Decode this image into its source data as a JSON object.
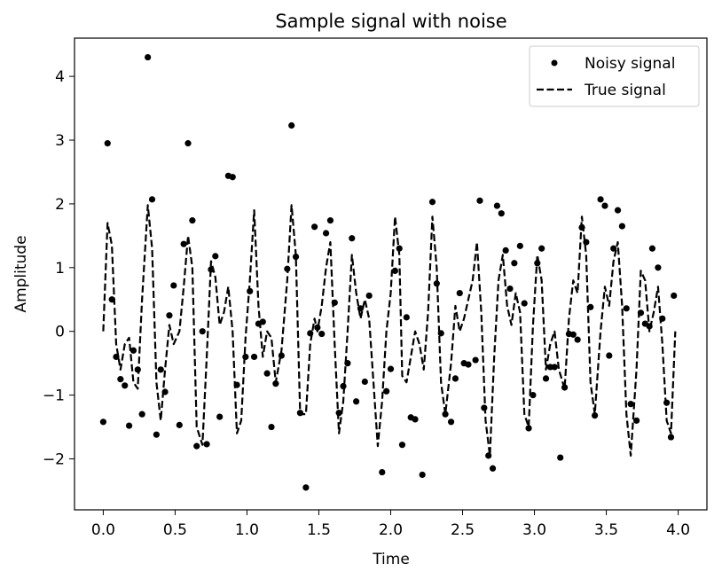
{
  "chart_data": {
    "type": "line",
    "title": "Sample signal with noise",
    "xlabel": "Time",
    "ylabel": "Amplitude",
    "xlim": [
      -0.2,
      4.2
    ],
    "ylim": [
      -2.8,
      4.6
    ],
    "xticks": [
      "0.0",
      "0.5",
      "1.0",
      "1.5",
      "2.0",
      "2.5",
      "3.0",
      "3.5",
      "4.0"
    ],
    "yticks": [
      "−2",
      "−1",
      "0",
      "1",
      "2",
      "3",
      "4"
    ],
    "legend": {
      "position": "upper-right",
      "entries": [
        "Noisy signal",
        "True signal"
      ]
    },
    "series": [
      {
        "name": "Noisy signal",
        "style": "points",
        "color": "#000000",
        "points": [
          [
            0.0,
            -1.42
          ],
          [
            0.03,
            2.95
          ],
          [
            0.06,
            0.5
          ],
          [
            0.09,
            -0.4
          ],
          [
            0.12,
            -0.75
          ],
          [
            0.15,
            -0.85
          ],
          [
            0.18,
            -1.48
          ],
          [
            0.21,
            -0.3
          ],
          [
            0.24,
            -0.6
          ],
          [
            0.27,
            -1.3
          ],
          [
            0.31,
            4.3
          ],
          [
            0.34,
            2.07
          ],
          [
            0.37,
            -1.62
          ],
          [
            0.4,
            -0.6
          ],
          [
            0.43,
            -0.95
          ],
          [
            0.46,
            0.25
          ],
          [
            0.49,
            0.72
          ],
          [
            0.53,
            -1.47
          ],
          [
            0.56,
            1.37
          ],
          [
            0.59,
            2.95
          ],
          [
            0.62,
            1.74
          ],
          [
            0.65,
            -1.8
          ],
          [
            0.69,
            0.0
          ],
          [
            0.72,
            -1.77
          ],
          [
            0.75,
            0.97
          ],
          [
            0.78,
            1.18
          ],
          [
            0.81,
            -1.34
          ],
          [
            0.87,
            2.44
          ],
          [
            0.9,
            2.42
          ],
          [
            0.93,
            -0.84
          ],
          [
            0.99,
            -0.4
          ],
          [
            1.02,
            0.63
          ],
          [
            1.05,
            -0.4
          ],
          [
            1.08,
            0.12
          ],
          [
            1.11,
            0.15
          ],
          [
            1.14,
            -0.66
          ],
          [
            1.17,
            -1.5
          ],
          [
            1.2,
            -0.82
          ],
          [
            1.24,
            -0.38
          ],
          [
            1.28,
            0.98
          ],
          [
            1.31,
            3.23
          ],
          [
            1.34,
            1.17
          ],
          [
            1.37,
            -1.28
          ],
          [
            1.41,
            -2.45
          ],
          [
            1.44,
            -0.03
          ],
          [
            1.47,
            1.64
          ],
          [
            1.49,
            0.06
          ],
          [
            1.52,
            -0.04
          ],
          [
            1.55,
            1.54
          ],
          [
            1.58,
            1.74
          ],
          [
            1.61,
            0.45
          ],
          [
            1.64,
            -1.28
          ],
          [
            1.67,
            -0.86
          ],
          [
            1.7,
            -0.5
          ],
          [
            1.73,
            1.46
          ],
          [
            1.76,
            -1.1
          ],
          [
            1.79,
            0.36
          ],
          [
            1.82,
            -0.79
          ],
          [
            1.85,
            0.56
          ],
          [
            1.94,
            -2.21
          ],
          [
            1.97,
            -0.94
          ],
          [
            2.0,
            -0.59
          ],
          [
            2.03,
            0.95
          ],
          [
            2.06,
            1.3
          ],
          [
            2.08,
            -1.78
          ],
          [
            2.11,
            0.22
          ],
          [
            2.14,
            -1.35
          ],
          [
            2.17,
            -1.38
          ],
          [
            2.22,
            -2.25
          ],
          [
            2.29,
            2.03
          ],
          [
            2.32,
            0.75
          ],
          [
            2.35,
            -0.03
          ],
          [
            2.38,
            -1.3
          ],
          [
            2.42,
            -1.42
          ],
          [
            2.45,
            -0.74
          ],
          [
            2.48,
            0.6
          ],
          [
            2.51,
            -0.5
          ],
          [
            2.54,
            -0.52
          ],
          [
            2.59,
            -0.45
          ],
          [
            2.62,
            2.05
          ],
          [
            2.65,
            -1.2
          ],
          [
            2.68,
            -1.95
          ],
          [
            2.71,
            -2.15
          ],
          [
            2.74,
            1.97
          ],
          [
            2.77,
            1.85
          ],
          [
            2.8,
            1.27
          ],
          [
            2.83,
            0.67
          ],
          [
            2.86,
            1.07
          ],
          [
            2.9,
            1.34
          ],
          [
            2.93,
            0.44
          ],
          [
            2.96,
            -1.52
          ],
          [
            2.99,
            -1.0
          ],
          [
            3.02,
            1.07
          ],
          [
            3.05,
            1.3
          ],
          [
            3.08,
            -0.74
          ],
          [
            3.11,
            -0.56
          ],
          [
            3.14,
            -0.56
          ],
          [
            3.18,
            -1.98
          ],
          [
            3.21,
            -0.88
          ],
          [
            3.24,
            -0.04
          ],
          [
            3.27,
            -0.05
          ],
          [
            3.3,
            -0.13
          ],
          [
            3.33,
            1.63
          ],
          [
            3.36,
            1.4
          ],
          [
            3.39,
            0.38
          ],
          [
            3.42,
            -1.32
          ],
          [
            3.46,
            2.07
          ],
          [
            3.49,
            1.97
          ],
          [
            3.52,
            -0.38
          ],
          [
            3.55,
            1.3
          ],
          [
            3.58,
            1.9
          ],
          [
            3.61,
            1.65
          ],
          [
            3.64,
            0.36
          ],
          [
            3.67,
            -1.14
          ],
          [
            3.71,
            -1.4
          ],
          [
            3.74,
            0.29
          ],
          [
            3.77,
            0.12
          ],
          [
            3.8,
            0.08
          ],
          [
            3.82,
            1.3
          ],
          [
            3.86,
            1.0
          ],
          [
            3.89,
            0.2
          ],
          [
            3.92,
            -1.12
          ],
          [
            3.95,
            -1.66
          ],
          [
            3.97,
            0.56
          ]
        ]
      },
      {
        "name": "True signal",
        "style": "dashed-line",
        "color": "#000000",
        "points": [
          [
            0.0,
            0.0
          ],
          [
            0.03,
            1.7
          ],
          [
            0.06,
            1.35
          ],
          [
            0.09,
            -0.2
          ],
          [
            0.12,
            -0.6
          ],
          [
            0.15,
            -0.2
          ],
          [
            0.18,
            -0.1
          ],
          [
            0.21,
            -0.8
          ],
          [
            0.24,
            -0.9
          ],
          [
            0.27,
            0.5
          ],
          [
            0.31,
            1.98
          ],
          [
            0.34,
            1.3
          ],
          [
            0.37,
            -0.8
          ],
          [
            0.4,
            -1.4
          ],
          [
            0.43,
            -0.6
          ],
          [
            0.46,
            0.1
          ],
          [
            0.49,
            -0.2
          ],
          [
            0.53,
            0.0
          ],
          [
            0.56,
            0.7
          ],
          [
            0.59,
            1.5
          ],
          [
            0.62,
            1.0
          ],
          [
            0.65,
            -1.5
          ],
          [
            0.69,
            -1.78
          ],
          [
            0.72,
            -0.4
          ],
          [
            0.75,
            1.1
          ],
          [
            0.78,
            0.85
          ],
          [
            0.81,
            0.1
          ],
          [
            0.84,
            0.3
          ],
          [
            0.87,
            0.7
          ],
          [
            0.9,
            0.0
          ],
          [
            0.93,
            -1.6
          ],
          [
            0.96,
            -1.4
          ],
          [
            0.99,
            -0.1
          ],
          [
            1.02,
            0.8
          ],
          [
            1.05,
            1.9
          ],
          [
            1.08,
            0.4
          ],
          [
            1.11,
            -0.4
          ],
          [
            1.14,
            0.0
          ],
          [
            1.17,
            -0.1
          ],
          [
            1.2,
            -0.8
          ],
          [
            1.24,
            -0.3
          ],
          [
            1.28,
            0.8
          ],
          [
            1.31,
            1.98
          ],
          [
            1.34,
            1.2
          ],
          [
            1.37,
            -1.3
          ],
          [
            1.41,
            -1.3
          ],
          [
            1.44,
            -0.2
          ],
          [
            1.47,
            0.2
          ],
          [
            1.49,
            0.0
          ],
          [
            1.52,
            0.4
          ],
          [
            1.55,
            1.0
          ],
          [
            1.58,
            1.4
          ],
          [
            1.61,
            -0.2
          ],
          [
            1.64,
            -1.6
          ],
          [
            1.67,
            -1.1
          ],
          [
            1.7,
            0.0
          ],
          [
            1.73,
            1.2
          ],
          [
            1.76,
            0.6
          ],
          [
            1.79,
            0.2
          ],
          [
            1.82,
            0.5
          ],
          [
            1.85,
            0.2
          ],
          [
            1.88,
            -0.8
          ],
          [
            1.91,
            -1.8
          ],
          [
            1.94,
            -1.1
          ],
          [
            1.97,
            0.0
          ],
          [
            2.0,
            0.6
          ],
          [
            2.03,
            1.8
          ],
          [
            2.06,
            1.2
          ],
          [
            2.08,
            -0.7
          ],
          [
            2.11,
            -0.8
          ],
          [
            2.14,
            -0.4
          ],
          [
            2.17,
            0.0
          ],
          [
            2.2,
            -0.2
          ],
          [
            2.23,
            -0.6
          ],
          [
            2.26,
            0.3
          ],
          [
            2.29,
            1.8
          ],
          [
            2.32,
            1.0
          ],
          [
            2.35,
            -0.8
          ],
          [
            2.38,
            -1.3
          ],
          [
            2.42,
            -0.5
          ],
          [
            2.45,
            0.4
          ],
          [
            2.48,
            0.0
          ],
          [
            2.51,
            0.2
          ],
          [
            2.54,
            0.5
          ],
          [
            2.57,
            0.8
          ],
          [
            2.6,
            1.4
          ],
          [
            2.63,
            0.3
          ],
          [
            2.66,
            -1.4
          ],
          [
            2.69,
            -1.95
          ],
          [
            2.72,
            -0.4
          ],
          [
            2.75,
            0.8
          ],
          [
            2.78,
            1.2
          ],
          [
            2.81,
            0.4
          ],
          [
            2.84,
            0.1
          ],
          [
            2.87,
            0.6
          ],
          [
            2.9,
            0.3
          ],
          [
            2.93,
            -1.3
          ],
          [
            2.96,
            -1.5
          ],
          [
            2.99,
            0.1
          ],
          [
            3.02,
            1.2
          ],
          [
            3.05,
            0.8
          ],
          [
            3.08,
            -0.6
          ],
          [
            3.11,
            -0.2
          ],
          [
            3.14,
            0.0
          ],
          [
            3.17,
            -0.6
          ],
          [
            3.21,
            -0.9
          ],
          [
            3.24,
            0.2
          ],
          [
            3.27,
            0.8
          ],
          [
            3.3,
            0.6
          ],
          [
            3.33,
            1.8
          ],
          [
            3.36,
            1.2
          ],
          [
            3.39,
            -0.8
          ],
          [
            3.42,
            -1.3
          ],
          [
            3.46,
            0.0
          ],
          [
            3.49,
            0.7
          ],
          [
            3.52,
            0.4
          ],
          [
            3.55,
            1.1
          ],
          [
            3.58,
            1.4
          ],
          [
            3.61,
            0.4
          ],
          [
            3.64,
            -1.3
          ],
          [
            3.67,
            -1.95
          ],
          [
            3.71,
            -0.6
          ],
          [
            3.74,
            0.95
          ],
          [
            3.77,
            0.8
          ],
          [
            3.8,
            0.0
          ],
          [
            3.83,
            0.3
          ],
          [
            3.86,
            0.7
          ],
          [
            3.89,
            -0.2
          ],
          [
            3.92,
            -1.4
          ],
          [
            3.95,
            -1.6
          ],
          [
            3.98,
            0.0
          ]
        ]
      }
    ]
  }
}
